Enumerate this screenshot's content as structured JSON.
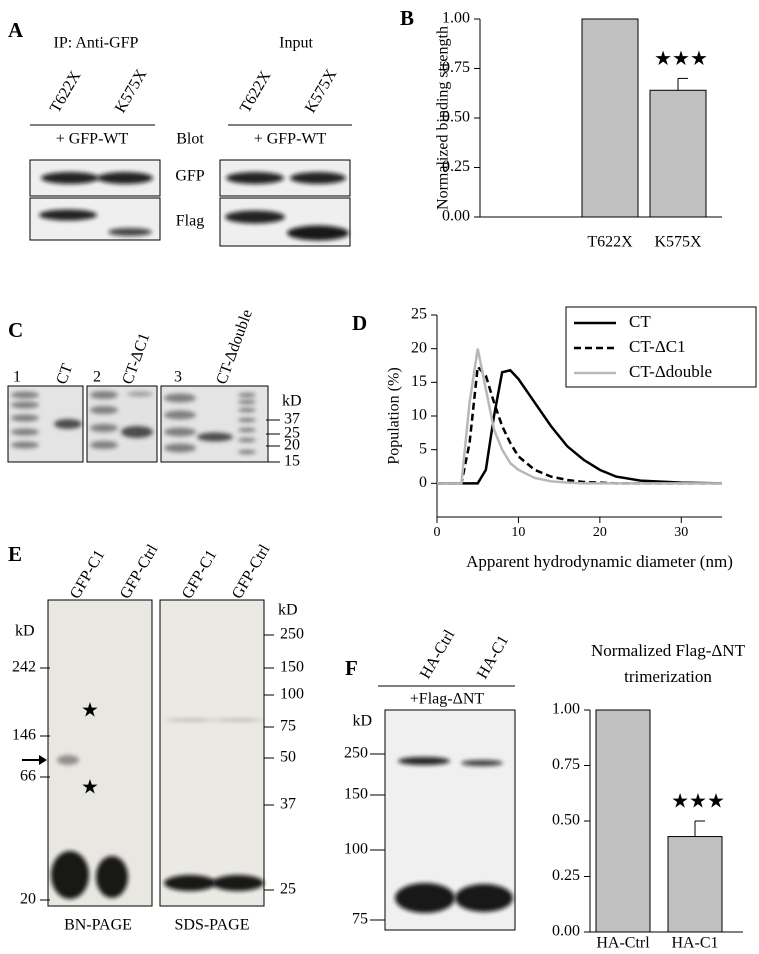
{
  "panel_labels": [
    "A",
    "B",
    "C",
    "D",
    "E",
    "F"
  ],
  "panel_a": {
    "ip_title": "IP: Anti-GFP",
    "input_title": "Input",
    "lanes": [
      "T622X",
      "K575X",
      "T622X",
      "K575X"
    ],
    "treatments": [
      "+ GFP-WT",
      "+ GFP-WT"
    ],
    "blot_header": "Blot",
    "blots": [
      "GFP",
      "Flag"
    ]
  },
  "panel_c": {
    "lanes": [
      "1",
      "CT",
      "2",
      "CT-ΔC1",
      "3",
      "CT-Δdouble"
    ],
    "unit": "kD",
    "markers": [
      "37",
      "25",
      "20",
      "15"
    ]
  },
  "panel_e": {
    "lanes": [
      "GFP-C1",
      "GFP-Ctrl",
      "GFP-C1",
      "GFP-Ctrl"
    ],
    "units": [
      "kD",
      "kD"
    ],
    "left_markers": [
      "242",
      "146",
      "66",
      "20"
    ],
    "right_markers": [
      "250",
      "150",
      "100",
      "75",
      "50",
      "37",
      "25"
    ],
    "gels": [
      "BN-PAGE",
      "SDS-PAGE"
    ],
    "stars": [
      "★",
      "★"
    ]
  },
  "panel_f_gel": {
    "lanes": [
      "HA-Ctrl",
      "HA-C1"
    ],
    "treatment": "+Flag-ΔNT",
    "unit": "kD",
    "markers": [
      "250",
      "150",
      "100",
      "75"
    ]
  },
  "chart_data": [
    {
      "type": "bar",
      "y_label": "Normalized binding strength",
      "categories": [
        "T622X",
        "K575X"
      ],
      "values": [
        1.0,
        0.64
      ],
      "errors": [
        null,
        0.06
      ],
      "annotation": "★★★",
      "color": "#c0c0c0",
      "ylim": [
        0,
        1
      ],
      "yticks": [
        {
          "value": 0,
          "label": "0.00"
        },
        {
          "value": 0.25,
          "label": "0.25"
        },
        {
          "value": 0.5,
          "label": "0.50"
        },
        {
          "value": 0.75,
          "label": "0.75"
        },
        {
          "value": 1,
          "label": "1.00"
        }
      ]
    },
    {
      "type": "line",
      "x_label": "Apparent hydrodynamic diameter (nm)",
      "y_label": "Population (%)",
      "x": [
        0,
        3,
        4,
        5,
        6,
        7,
        8,
        9,
        10,
        12,
        14,
        16,
        18,
        20,
        22,
        25,
        30,
        35
      ],
      "series": [
        {
          "name": "CT",
          "color": "#000000",
          "dash": "solid",
          "values": [
            0,
            0,
            0,
            0,
            2,
            10,
            16.5,
            16.8,
            15.5,
            12,
            8.5,
            5.5,
            3.5,
            2,
            1,
            0.4,
            0.1,
            0
          ]
        },
        {
          "name": "CT-ΔC1",
          "color": "#000000",
          "dash": "dashed",
          "values": [
            0,
            0,
            6,
            17.3,
            16,
            12,
            8.5,
            6,
            4,
            2,
            1,
            0.5,
            0.2,
            0.1,
            0,
            0,
            0,
            0
          ]
        },
        {
          "name": "CT-Δdouble",
          "color": "#b8b8b8",
          "dash": "solid",
          "values": [
            0,
            0,
            12,
            20,
            14,
            8,
            5,
            3,
            2,
            0.8,
            0.3,
            0.1,
            0,
            0,
            0,
            0,
            0,
            0
          ]
        }
      ],
      "xlim": [
        0,
        35
      ],
      "xticks": [
        0,
        10,
        20,
        30
      ],
      "ylim": [
        -5,
        25
      ],
      "yticks": [
        0,
        5,
        10,
        15,
        20,
        25
      ],
      "legend": "upper right"
    },
    {
      "type": "bar",
      "title": [
        "Normalized Flag-ΔNT",
        "trimerization"
      ],
      "categories": [
        "HA-Ctrl",
        "HA-C1"
      ],
      "values": [
        1.0,
        0.43
      ],
      "errors": [
        null,
        0.07
      ],
      "annotation": "★★★",
      "color": "#c0c0c0",
      "ylim": [
        0,
        1
      ],
      "yticks": [
        {
          "value": 0,
          "label": "0.00"
        },
        {
          "value": 0.25,
          "label": "0.25"
        },
        {
          "value": 0.5,
          "label": "0.50"
        },
        {
          "value": 0.75,
          "label": "0.75"
        },
        {
          "value": 1,
          "label": "1.00"
        }
      ]
    }
  ]
}
